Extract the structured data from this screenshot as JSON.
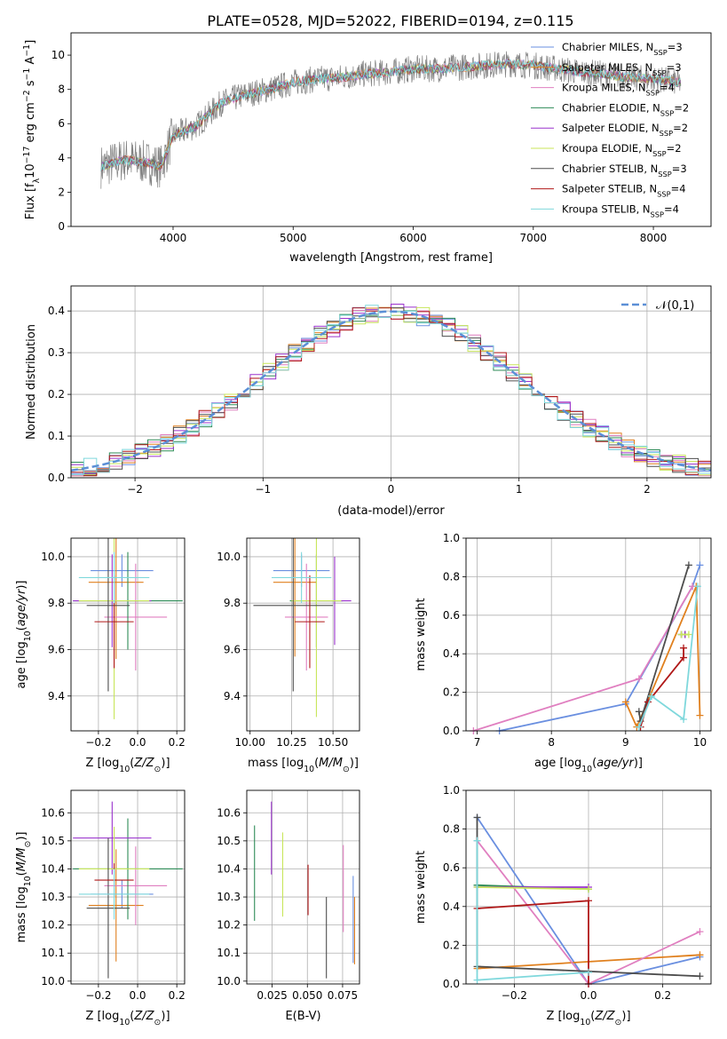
{
  "figure_title": "PLATE=0528, MJD=52022, FIBERID=0194, z=0.115",
  "colors": {
    "Chabrier MILES": "#6a8fe0",
    "Salpeter MILES": "#e0801e",
    "Kroupa MILES": "#e07fc0",
    "Chabrier ELODIE": "#2e8b57",
    "Salpeter ELODIE": "#9a32cd",
    "Kroupa ELODIE": "#c8e65a",
    "Chabrier STELIB": "#4d4d4d",
    "Salpeter STELIB": "#b01818",
    "Kroupa STELIB": "#7fd8dc",
    "data": "#808080",
    "gaussian": "#5b8fd6"
  },
  "chart_data": [
    {
      "id": "spectrum",
      "type": "line",
      "xlabel": "wavelength [Angstrom, rest frame]",
      "ylabel": "Flux [f_λ 10⁻¹⁷ erg cm⁻² s⁻¹ A⁻¹]",
      "xlim": [
        3150,
        8480
      ],
      "ylim": [
        0,
        11.3
      ],
      "xticks": [
        4000,
        5000,
        6000,
        7000,
        8000
      ],
      "yticks": [
        0,
        2,
        4,
        6,
        8,
        10
      ],
      "grid": false,
      "legend_position": "top-right",
      "continuum_x": [
        3400,
        3600,
        3800,
        3900,
        4000,
        4200,
        4400,
        4600,
        4800,
        5000,
        5200,
        5400,
        5600,
        5800,
        6000,
        6200,
        6400,
        6600,
        6800,
        7000,
        7200,
        7400,
        7600,
        7800,
        8000,
        8230
      ],
      "continuum_y": [
        3.5,
        3.9,
        3.7,
        3.5,
        5.3,
        5.9,
        7.2,
        7.7,
        8.0,
        8.4,
        8.6,
        8.7,
        8.9,
        9.0,
        9.2,
        9.2,
        9.3,
        9.4,
        9.5,
        9.4,
        9.2,
        9.0,
        8.9,
        8.7,
        8.6,
        8.4
      ],
      "series": [
        {
          "name": "Chabrier MILES",
          "n_ssp": "3"
        },
        {
          "name": "Salpeter MILES",
          "n_ssp": "3"
        },
        {
          "name": "Kroupa MILES",
          "n_ssp": "4"
        },
        {
          "name": "Chabrier ELODIE",
          "n_ssp": "2"
        },
        {
          "name": "Salpeter ELODIE",
          "n_ssp": "2"
        },
        {
          "name": "Kroupa ELODIE",
          "n_ssp": "2"
        },
        {
          "name": "Chabrier STELIB",
          "n_ssp": "3"
        },
        {
          "name": "Salpeter STELIB",
          "n_ssp": "4"
        },
        {
          "name": "Kroupa STELIB",
          "n_ssp": "4"
        }
      ]
    },
    {
      "id": "residuals",
      "type": "line",
      "xlabel": "(data-model)/error",
      "ylabel": "Normed distribution",
      "xlim": [
        -2.5,
        2.5
      ],
      "ylim": [
        0,
        0.46
      ],
      "xticks": [
        -2,
        -1,
        0,
        1,
        2
      ],
      "yticks": [
        0.0,
        0.1,
        0.2,
        0.3,
        0.4
      ],
      "grid": true,
      "legend": "𝒩(0,1)",
      "legend_position": "top-right"
    },
    {
      "id": "age_vs_Z",
      "type": "scatter",
      "xlabel": "Z [log₁₀(Z/Z⊙)]",
      "ylabel": "age  [log₁₀(age/yr)]",
      "xlim": [
        -0.34,
        0.24
      ],
      "ylim": [
        9.25,
        10.08
      ],
      "xticks": [
        -0.2,
        0.0,
        0.2
      ],
      "yticks": [
        9.4,
        9.6,
        9.8,
        10.0
      ],
      "grid": true,
      "points": [
        {
          "series": "Chabrier MILES",
          "x": -0.08,
          "xerr": 0.16,
          "y": 9.94,
          "yerr": 0.07
        },
        {
          "series": "Salpeter MILES",
          "x": -0.11,
          "xerr": 0.14,
          "y": 9.89,
          "yerr": 0.33
        },
        {
          "series": "Kroupa MILES",
          "x": -0.01,
          "xerr": 0.16,
          "y": 9.74,
          "yerr": 0.23
        },
        {
          "series": "Chabrier ELODIE",
          "x": -0.05,
          "xerr": 0.28,
          "y": 9.81,
          "yerr": 0.21
        },
        {
          "series": "Salpeter ELODIE",
          "x": -0.13,
          "xerr": 0.2,
          "y": 9.81,
          "yerr": 0.2
        },
        {
          "series": "Kroupa ELODIE",
          "x": -0.12,
          "xerr": 0.18,
          "y": 9.81,
          "yerr": 0.51
        },
        {
          "series": "Chabrier STELIB",
          "x": -0.15,
          "xerr": 0.11,
          "y": 9.79,
          "yerr": 0.37
        },
        {
          "series": "Salpeter STELIB",
          "x": -0.12,
          "xerr": 0.1,
          "y": 9.72,
          "yerr": 0.2
        },
        {
          "series": "Kroupa STELIB",
          "x": -0.12,
          "xerr": 0.18,
          "y": 9.91,
          "yerr": 0.11
        }
      ]
    },
    {
      "id": "age_vs_mass",
      "type": "scatter",
      "xlabel": "mass [log₁₀(M/M⊙)]",
      "ylabel": "",
      "xlim": [
        9.98,
        10.66
      ],
      "ylim": [
        9.25,
        10.08
      ],
      "xticks": [
        10.0,
        10.25,
        10.5
      ],
      "yticks": [
        9.4,
        9.6,
        9.8,
        10.0
      ],
      "grid": true,
      "points": [
        {
          "series": "Chabrier MILES",
          "x": 10.31,
          "xerr": 0.17,
          "y": 9.94,
          "yerr": 0.07
        },
        {
          "series": "Salpeter MILES",
          "x": 10.27,
          "xerr": 0.13,
          "y": 9.89,
          "yerr": 0.32
        },
        {
          "series": "Kroupa MILES",
          "x": 10.34,
          "xerr": 0.13,
          "y": 9.74,
          "yerr": 0.23
        },
        {
          "series": "Chabrier ELODIE",
          "x": 10.4,
          "xerr": 0.16,
          "y": 9.81,
          "yerr": 0.2
        },
        {
          "series": "Salpeter ELODIE",
          "x": 10.51,
          "xerr": 0.1,
          "y": 9.81,
          "yerr": 0.19
        },
        {
          "series": "Kroupa ELODIE",
          "x": 10.4,
          "xerr": 0.15,
          "y": 9.81,
          "yerr": 0.5
        },
        {
          "series": "Chabrier STELIB",
          "x": 10.26,
          "xerr": 0.24,
          "y": 9.79,
          "yerr": 0.37
        },
        {
          "series": "Salpeter STELIB",
          "x": 10.36,
          "xerr": 0.09,
          "y": 9.72,
          "yerr": 0.2
        },
        {
          "series": "Kroupa STELIB",
          "x": 10.31,
          "xerr": 0.18,
          "y": 9.91,
          "yerr": 0.11
        }
      ]
    },
    {
      "id": "weight_vs_age",
      "type": "line",
      "xlabel": "age  [log₁₀(age/yr)]",
      "ylabel": "mass weight",
      "xlim": [
        6.85,
        10.15
      ],
      "ylim": [
        0,
        1.0
      ],
      "xticks": [
        7,
        8,
        9,
        10
      ],
      "yticks": [
        0.0,
        0.2,
        0.4,
        0.6,
        0.8,
        1.0
      ],
      "grid": true,
      "series": [
        {
          "name": "Chabrier MILES",
          "x": [
            7.3,
            9.0,
            9.9,
            10.0
          ],
          "y": [
            0.0,
            0.14,
            0.75,
            0.86
          ]
        },
        {
          "name": "Salpeter MILES",
          "x": [
            9.0,
            9.15,
            9.95,
            10.0
          ],
          "y": [
            0.15,
            0.02,
            0.75,
            0.08
          ]
        },
        {
          "name": "Kroupa MILES",
          "x": [
            6.95,
            9.18,
            9.9
          ],
          "y": [
            0.0,
            0.27,
            0.75
          ]
        },
        {
          "name": "Chabrier ELODIE",
          "x": [
            9.75,
            9.8
          ],
          "y": [
            0.5,
            0.5
          ]
        },
        {
          "name": "Salpeter ELODIE",
          "x": [
            9.75,
            9.8
          ],
          "y": [
            0.5,
            0.5
          ]
        },
        {
          "name": "Kroupa ELODIE",
          "x": [
            9.75,
            9.85
          ],
          "y": [
            0.5,
            0.5
          ]
        },
        {
          "name": "Chabrier STELIB",
          "x": [
            9.18,
            9.2,
            9.85
          ],
          "y": [
            0.1,
            0.05,
            0.86
          ]
        },
        {
          "name": "Salpeter STELIB",
          "x": [
            9.2,
            9.3,
            9.78,
            9.78
          ],
          "y": [
            0.02,
            0.15,
            0.38,
            0.43
          ]
        },
        {
          "name": "Kroupa STELIB",
          "x": [
            9.18,
            9.35,
            9.78,
            9.97
          ],
          "y": [
            0.02,
            0.18,
            0.06,
            0.75
          ]
        }
      ]
    },
    {
      "id": "mass_vs_Z",
      "type": "scatter",
      "xlabel": "Z [log₁₀(Z/Z⊙)]",
      "ylabel": "mass [log₁₀(M/M⊙)]",
      "xlim": [
        -0.34,
        0.24
      ],
      "ylim": [
        9.99,
        10.68
      ],
      "xticks": [
        -0.2,
        0.0,
        0.2
      ],
      "yticks": [
        10.0,
        10.1,
        10.2,
        10.3,
        10.4,
        10.5,
        10.6
      ],
      "grid": true,
      "points": [
        {
          "series": "Chabrier MILES",
          "x": -0.08,
          "xerr": 0.16,
          "y": 10.31,
          "yerr": 0.05
        },
        {
          "series": "Salpeter MILES",
          "x": -0.11,
          "xerr": 0.14,
          "y": 10.27,
          "yerr": 0.2
        },
        {
          "series": "Kroupa MILES",
          "x": -0.01,
          "xerr": 0.16,
          "y": 10.34,
          "yerr": 0.14
        },
        {
          "series": "Chabrier ELODIE",
          "x": -0.05,
          "xerr": 0.28,
          "y": 10.4,
          "yerr": 0.18
        },
        {
          "series": "Salpeter ELODIE",
          "x": -0.13,
          "xerr": 0.2,
          "y": 10.51,
          "yerr": 0.13
        },
        {
          "series": "Kroupa ELODIE",
          "x": -0.12,
          "xerr": 0.18,
          "y": 10.4,
          "yerr": 0.15
        },
        {
          "series": "Chabrier STELIB",
          "x": -0.15,
          "xerr": 0.11,
          "y": 10.26,
          "yerr": 0.25
        },
        {
          "series": "Salpeter STELIB",
          "x": -0.12,
          "xerr": 0.1,
          "y": 10.36,
          "yerr": 0.06
        },
        {
          "series": "Kroupa STELIB",
          "x": -0.12,
          "xerr": 0.18,
          "y": 10.31,
          "yerr": 0.09
        }
      ]
    },
    {
      "id": "mass_vs_ebv",
      "type": "scatter",
      "xlabel": "E(B-V)",
      "ylabel": "",
      "xlim": [
        0.007,
        0.087
      ],
      "ylim": [
        9.99,
        10.68
      ],
      "xticks": [
        0.025,
        0.05,
        0.075
      ],
      "xtick_labels": [
        "0.025",
        "0.050",
        "0.075"
      ],
      "yticks": [
        10.0,
        10.1,
        10.2,
        10.3,
        10.4,
        10.5,
        10.6
      ],
      "grid": true,
      "points": [
        {
          "series": "Chabrier ELODIE",
          "x": 0.0125,
          "y": 10.385,
          "yerr": 0.17
        },
        {
          "series": "Salpeter ELODIE",
          "x": 0.0245,
          "y": 10.51,
          "yerr": 0.13
        },
        {
          "series": "Kroupa ELODIE",
          "x": 0.0325,
          "y": 10.38,
          "yerr": 0.15
        },
        {
          "series": "Salpeter STELIB",
          "x": 0.0505,
          "y": 10.325,
          "yerr": 0.09
        },
        {
          "series": "Chabrier STELIB",
          "x": 0.0635,
          "y": 10.155,
          "yerr": 0.145
        },
        {
          "series": "Kroupa MILES",
          "x": 0.0755,
          "y": 10.33,
          "yerr": 0.155
        },
        {
          "series": "Chabrier MILES",
          "x": 0.0825,
          "y": 10.22,
          "yerr": 0.155
        },
        {
          "series": "Salpeter MILES",
          "x": 0.0835,
          "y": 10.18,
          "yerr": 0.12
        }
      ]
    },
    {
      "id": "weight_vs_Z",
      "type": "line",
      "xlabel": "Z [log₁₀(Z/Z⊙)]",
      "ylabel": "mass weight",
      "xlim": [
        -0.33,
        0.33
      ],
      "ylim": [
        0,
        1.0
      ],
      "xticks": [
        -0.2,
        0.0,
        0.2
      ],
      "yticks": [
        0.0,
        0.2,
        0.4,
        0.6,
        0.8,
        1.0
      ],
      "grid": true,
      "series": [
        {
          "name": "Chabrier MILES",
          "x": [
            -0.3,
            0.0,
            0.3
          ],
          "y": [
            0.86,
            0.0,
            0.14
          ]
        },
        {
          "name": "Salpeter MILES",
          "x": [
            -0.3,
            0.3
          ],
          "y": [
            0.08,
            0.15
          ]
        },
        {
          "name": "Kroupa MILES",
          "x": [
            -0.3,
            0.0,
            0.3
          ],
          "y": [
            0.74,
            0.0,
            0.27
          ]
        },
        {
          "name": "Chabrier ELODIE",
          "x": [
            -0.3,
            0.0
          ],
          "y": [
            0.51,
            0.49
          ]
        },
        {
          "name": "Salpeter ELODIE",
          "x": [
            -0.3,
            0.0
          ],
          "y": [
            0.5,
            0.5
          ]
        },
        {
          "name": "Kroupa ELODIE",
          "x": [
            -0.3,
            0.0
          ],
          "y": [
            0.5,
            0.49
          ]
        },
        {
          "name": "Chabrier STELIB",
          "x": [
            -0.3,
            -0.3,
            0.3
          ],
          "y": [
            0.86,
            0.09,
            0.04
          ]
        },
        {
          "name": "Salpeter STELIB",
          "x": [
            -0.3,
            0.0,
            0.0
          ],
          "y": [
            0.39,
            0.43,
            0.0
          ]
        },
        {
          "name": "Kroupa STELIB",
          "x": [
            -0.3,
            -0.3,
            0.0
          ],
          "y": [
            0.74,
            0.02,
            0.06
          ]
        }
      ]
    }
  ]
}
